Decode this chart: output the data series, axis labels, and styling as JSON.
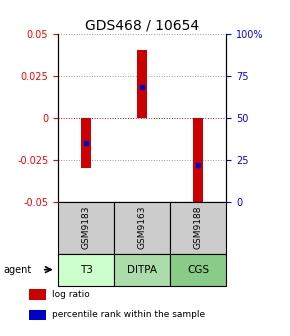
{
  "title": "GDS468 / 10654",
  "samples": [
    "GSM9183",
    "GSM9163",
    "GSM9188"
  ],
  "agents": [
    "T3",
    "DITPA",
    "CGS"
  ],
  "log_ratios": [
    -0.03,
    0.04,
    -0.055
  ],
  "percentile_ranks": [
    35,
    68,
    22
  ],
  "ylim": [
    -0.05,
    0.05
  ],
  "yticks_left": [
    -0.05,
    -0.025,
    0,
    0.025,
    0.05
  ],
  "yticks_right": [
    0,
    25,
    50,
    75,
    100
  ],
  "bar_color": "#cc0000",
  "dot_color": "#0000cc",
  "zero_line_color": "#cc0000",
  "agent_colors": [
    "#ccffcc",
    "#aaddaa",
    "#88cc88"
  ],
  "sample_box_color": "#cccccc",
  "title_fontsize": 10,
  "tick_fontsize": 7,
  "legend_fontsize": 6.5
}
